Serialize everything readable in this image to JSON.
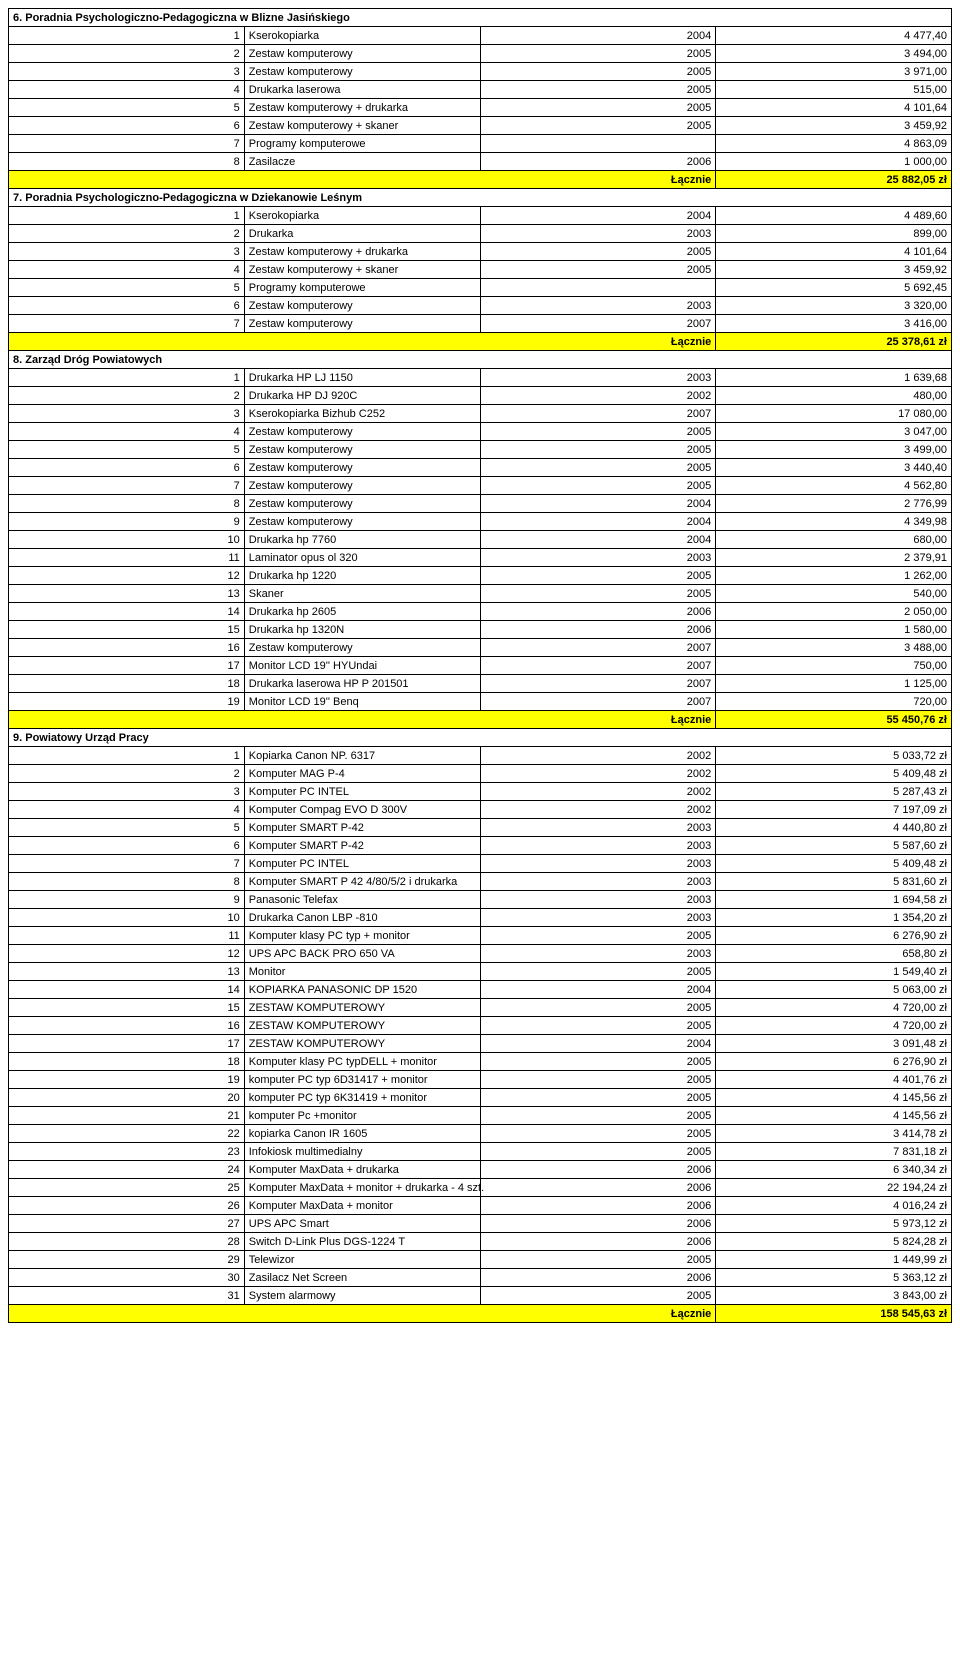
{
  "lacznie_label": "Łącznie",
  "sections": [
    {
      "title": "6. Poradnia Psychologiczno-Pedagogiczna w Blizne Jasińskiego",
      "rows": [
        {
          "n": "1",
          "d": "Kserokopiarka",
          "y": "2004",
          "v": "4 477,40"
        },
        {
          "n": "2",
          "d": "Zestaw komputerowy",
          "y": "2005",
          "v": "3 494,00"
        },
        {
          "n": "3",
          "d": "Zestaw komputerowy",
          "y": "2005",
          "v": "3 971,00"
        },
        {
          "n": "4",
          "d": "Drukarka laserowa",
          "y": "2005",
          "v": "515,00"
        },
        {
          "n": "5",
          "d": "Zestaw komputerowy + drukarka",
          "y": "2005",
          "v": "4 101,64"
        },
        {
          "n": "6",
          "d": "Zestaw komputerowy + skaner",
          "y": "2005",
          "v": "3 459,92"
        },
        {
          "n": "7",
          "d": "Programy komputerowe",
          "y": "",
          "v": "4 863,09"
        },
        {
          "n": "8",
          "d": "Zasilacze",
          "y": "2006",
          "v": "1 000,00"
        }
      ],
      "total": "25 882,05 zł"
    },
    {
      "title": "7. Poradnia Psychologiczno-Pedagogiczna w Dziekanowie Leśnym",
      "rows": [
        {
          "n": "1",
          "d": "Kserokopiarka",
          "y": "2004",
          "v": "4 489,60"
        },
        {
          "n": "2",
          "d": "Drukarka",
          "y": "2003",
          "v": "899,00"
        },
        {
          "n": "3",
          "d": "Zestaw komputerowy + drukarka",
          "y": "2005",
          "v": "4 101,64"
        },
        {
          "n": "4",
          "d": "Zestaw komputerowy + skaner",
          "y": "2005",
          "v": "3 459,92"
        },
        {
          "n": "5",
          "d": "Programy komputerowe",
          "y": "",
          "v": "5 692,45"
        },
        {
          "n": "6",
          "d": "Zestaw komputerowy",
          "y": "2003",
          "v": "3 320,00"
        },
        {
          "n": "7",
          "d": "Zestaw komputerowy",
          "y": "2007",
          "v": "3 416,00"
        }
      ],
      "total": "25 378,61 zł"
    },
    {
      "title": "8. Zarząd Dróg Powiatowych",
      "rows": [
        {
          "n": "1",
          "d": "Drukarka HP LJ 1150",
          "y": "2003",
          "v": "1 639,68"
        },
        {
          "n": "2",
          "d": "Drukarka HP DJ 920C",
          "y": "2002",
          "v": "480,00"
        },
        {
          "n": "3",
          "d": "Kserokopiarka Bizhub C252",
          "y": "2007",
          "v": "17 080,00"
        },
        {
          "n": "4",
          "d": "Zestaw komputerowy",
          "y": "2005",
          "v": "3 047,00"
        },
        {
          "n": "5",
          "d": "Zestaw komputerowy",
          "y": "2005",
          "v": "3 499,00"
        },
        {
          "n": "6",
          "d": "Zestaw komputerowy",
          "y": "2005",
          "v": "3 440,40"
        },
        {
          "n": "7",
          "d": "Zestaw komputerowy",
          "y": "2005",
          "v": "4 562,80"
        },
        {
          "n": "8",
          "d": "Zestaw komputerowy",
          "y": "2004",
          "v": "2 776,99"
        },
        {
          "n": "9",
          "d": "Zestaw komputerowy",
          "y": "2004",
          "v": "4 349,98"
        },
        {
          "n": "10",
          "d": "Drukarka hp 7760",
          "y": "2004",
          "v": "680,00"
        },
        {
          "n": "11",
          "d": "Laminator opus ol 320",
          "y": "2003",
          "v": "2 379,91"
        },
        {
          "n": "12",
          "d": "Drukarka hp 1220",
          "y": "2005",
          "v": "1 262,00"
        },
        {
          "n": "13",
          "d": "Skaner",
          "y": "2005",
          "v": "540,00"
        },
        {
          "n": "14",
          "d": "Drukarka hp 2605",
          "y": "2006",
          "v": "2 050,00"
        },
        {
          "n": "15",
          "d": "Drukarka hp 1320N",
          "y": "2006",
          "v": "1 580,00"
        },
        {
          "n": "16",
          "d": "Zestaw komputerowy",
          "y": "2007",
          "v": "3 488,00"
        },
        {
          "n": "17",
          "d": "Monitor LCD 19'' HYUndai",
          "y": "2007",
          "v": "750,00"
        },
        {
          "n": "18",
          "d": "Drukarka laserowa HP P 201501",
          "y": "2007",
          "v": "1 125,00"
        },
        {
          "n": "19",
          "d": "Monitor LCD 19'' Benq",
          "y": "2007",
          "v": "720,00"
        }
      ],
      "total": "55 450,76 zł"
    },
    {
      "title": "9. Powiatowy Urząd Pracy",
      "rows": [
        {
          "n": "1",
          "d": "Kopiarka Canon NP. 6317",
          "y": "2002",
          "v": "5 033,72 zł"
        },
        {
          "n": "2",
          "d": "Komputer MAG P-4",
          "y": "2002",
          "v": "5 409,48 zł"
        },
        {
          "n": "3",
          "d": "Komputer   PC INTEL",
          "y": "2002",
          "v": "5 287,43 zł"
        },
        {
          "n": "4",
          "d": "Komputer Compag EVO D 300V",
          "y": "2002",
          "v": "7 197,09 zł"
        },
        {
          "n": "5",
          "d": "Komputer  SMART P-42",
          "y": "2003",
          "v": "4 440,80 zł"
        },
        {
          "n": "6",
          "d": "Komputer  SMART P-42",
          "y": "2003",
          "v": "5 587,60 zł"
        },
        {
          "n": "7",
          "d": "Komputer  PC INTEL",
          "y": "2003",
          "v": "5 409,48 zł"
        },
        {
          "n": "8",
          "d": "Komputer  SMART  P 42 4/80/5/2 i drukarka",
          "y": "2003",
          "v": "5 831,60 zł"
        },
        {
          "n": "9",
          "d": "Panasonic Telefax",
          "y": "2003",
          "v": "1 694,58 zł"
        },
        {
          "n": "10",
          "d": "Drukarka   Canon LBP -810",
          "y": "2003",
          "v": "1 354,20 zł"
        },
        {
          "n": "11",
          "d": "Komputer klasy PC typ + monitor",
          "y": "2005",
          "v": "6 276,90 zł"
        },
        {
          "n": "12",
          "d": "UPS APC BACK PRO 650 VA",
          "y": "2003",
          "v": "658,80 zł"
        },
        {
          "n": "13",
          "d": "Monitor",
          "y": "2005",
          "v": "1 549,40 zł"
        },
        {
          "n": "14",
          "d": "KOPIARKA PANASONIC DP 1520",
          "y": "2004",
          "v": "5 063,00 zł"
        },
        {
          "n": "15",
          "d": "ZESTAW KOMPUTEROWY",
          "y": "2005",
          "v": "4 720,00 zł"
        },
        {
          "n": "16",
          "d": "ZESTAW KOMPUTEROWY",
          "y": "2005",
          "v": "4 720,00 zł"
        },
        {
          "n": "17",
          "d": "ZESTAW KOMPUTEROWY",
          "y": "2004",
          "v": "3 091,48 zł"
        },
        {
          "n": "18",
          "d": "Komputer klasy PC typDELL + monitor",
          "y": "2005",
          "v": "6 276,90 zł"
        },
        {
          "n": "19",
          "d": "komputer PC typ 6D31417 + monitor",
          "y": "2005",
          "v": "4 401,76 zł"
        },
        {
          "n": "20",
          "d": "komputer PC typ 6K31419 + monitor",
          "y": "2005",
          "v": "4 145,56 zł"
        },
        {
          "n": "21",
          "d": "komputer Pc +monitor",
          "y": "2005",
          "v": "4 145,56 zł"
        },
        {
          "n": "22",
          "d": "kopiarka Canon IR 1605",
          "y": "2005",
          "v": "3 414,78 zł"
        },
        {
          "n": "23",
          "d": "Infokiosk multimedialny",
          "y": "2005",
          "v": "7 831,18 zł"
        },
        {
          "n": "24",
          "d": "Komputer MaxData + drukarka",
          "y": "2006",
          "v": "6 340,34 zł"
        },
        {
          "n": "25",
          "d": "Komputer MaxData + monitor + drukarka - 4 szt.",
          "y": "2006",
          "v": "22 194,24 zł"
        },
        {
          "n": "26",
          "d": "Komputer MaxData + monitor",
          "y": "2006",
          "v": "4 016,24 zł"
        },
        {
          "n": "27",
          "d": "UPS APC Smart",
          "y": "2006",
          "v": "5 973,12 zł"
        },
        {
          "n": "28",
          "d": "Switch D-Link Plus DGS-1224 T",
          "y": "2006",
          "v": "5 824,28 zł"
        },
        {
          "n": "29",
          "d": "Telewizor",
          "y": "2005",
          "v": "1 449,99 zł"
        },
        {
          "n": "30",
          "d": "Zasilacz Net Screen",
          "y": "2006",
          "v": "5 363,12 zł"
        },
        {
          "n": "31",
          "d": "System alarmowy",
          "y": "2005",
          "v": "3 843,00 zł"
        }
      ],
      "total": "158 545,63 zł"
    }
  ]
}
